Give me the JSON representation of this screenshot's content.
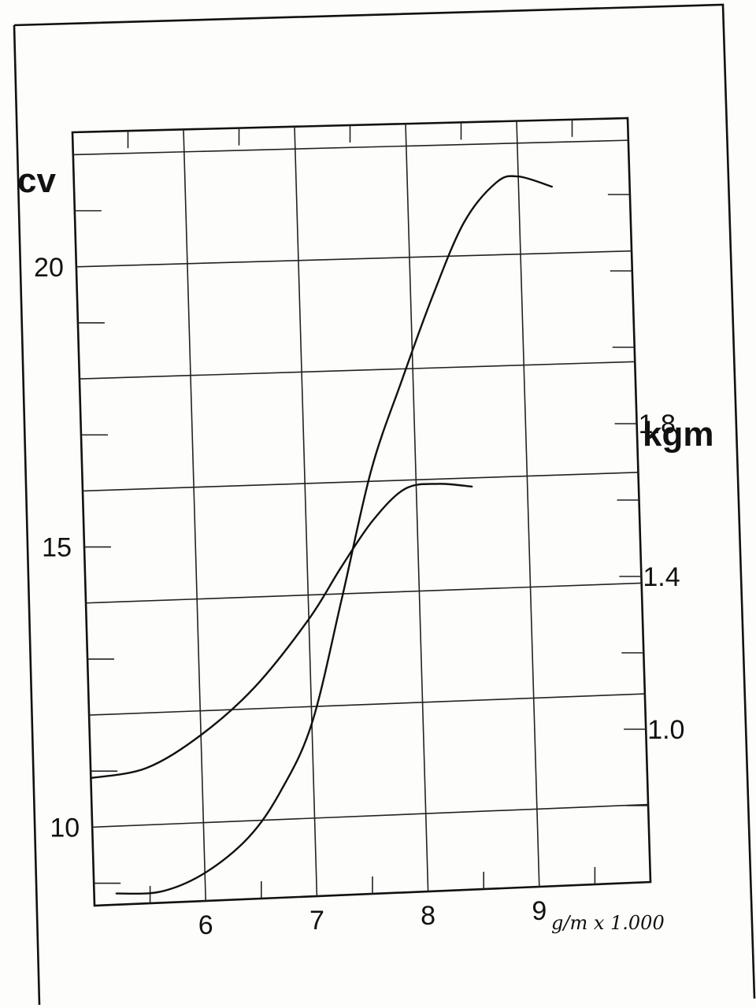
{
  "chart_data": {
    "type": "line",
    "x_axis": {
      "unit_label": "g/m x 1.000",
      "tick_labels": [
        "6",
        "7",
        "8",
        "9"
      ],
      "ticks": [
        6,
        7,
        8,
        9
      ],
      "range": [
        5.0,
        10.0
      ]
    },
    "y_axis_left": {
      "unit_label": "cv",
      "tick_labels": [
        "10",
        "15",
        "20"
      ],
      "ticks": [
        10,
        15,
        20
      ],
      "range": [
        8.6,
        22.4
      ]
    },
    "y_axis_right": {
      "unit_label": "kgm",
      "tick_labels": [
        "1.0",
        "1.4",
        "1.8"
      ],
      "ticks": [
        1.0,
        1.4,
        1.8
      ],
      "range": [
        0.6,
        2.6
      ]
    },
    "grid": true,
    "series": [
      {
        "axis": "left",
        "x": [
          5.2,
          5.6,
          6.0,
          6.4,
          6.7,
          7.0,
          7.3,
          7.6,
          7.9,
          8.2,
          8.5,
          8.8,
          9.0,
          9.3
        ],
        "y": [
          8.8,
          8.8,
          9.1,
          9.7,
          10.5,
          11.7,
          13.9,
          16.2,
          17.8,
          19.3,
          20.6,
          21.3,
          21.4,
          21.2
        ]
      },
      {
        "axis": "right",
        "x": [
          5.0,
          5.5,
          6.0,
          6.5,
          7.0,
          7.3,
          7.6,
          7.9,
          8.2,
          8.5
        ],
        "y": [
          0.93,
          0.95,
          1.03,
          1.15,
          1.32,
          1.45,
          1.57,
          1.65,
          1.66,
          1.65
        ]
      }
    ]
  }
}
